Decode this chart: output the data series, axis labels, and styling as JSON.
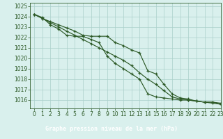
{
  "title": "Graphe pression niveau de la mer (hPa)",
  "xlim": [
    -0.5,
    23
  ],
  "ylim": [
    1015.2,
    1025.3
  ],
  "yticks": [
    1016,
    1017,
    1018,
    1019,
    1020,
    1021,
    1022,
    1023,
    1024,
    1025
  ],
  "xticks": [
    0,
    1,
    2,
    3,
    4,
    5,
    6,
    7,
    8,
    9,
    10,
    11,
    12,
    13,
    14,
    15,
    16,
    17,
    18,
    19,
    20,
    21,
    22,
    23
  ],
  "background_color": "#d9f0ed",
  "grid_color": "#aacfca",
  "line_color": "#2d5a27",
  "marker": "+",
  "line1": [
    1024.2,
    1023.8,
    1023.5,
    1023.2,
    1022.9,
    1022.6,
    1022.2,
    1022.1,
    1022.1,
    1022.1,
    1021.5,
    1021.2,
    1020.8,
    1020.5,
    1018.8,
    1018.5,
    1017.5,
    1016.6,
    1016.2,
    1016.1,
    1015.9,
    1015.8,
    1015.8,
    1015.7
  ],
  "line2": [
    1024.2,
    1023.8,
    1023.4,
    1023.0,
    1022.6,
    1022.2,
    1021.8,
    1021.4,
    1021.0,
    1020.6,
    1020.2,
    1019.8,
    1019.3,
    1018.6,
    1018.0,
    1017.5,
    1016.9,
    1016.3,
    1016.1,
    1016.0,
    1015.9,
    1015.8,
    1015.7,
    1015.6
  ],
  "line3": [
    1024.2,
    1023.9,
    1023.2,
    1022.8,
    1022.2,
    1022.1,
    1022.1,
    1021.8,
    1021.5,
    1020.2,
    1019.5,
    1019.0,
    1018.5,
    1018.0,
    1016.6,
    1016.3,
    1016.2,
    1016.1,
    1016.0,
    1016.0,
    1015.9,
    1015.8,
    1015.8,
    1015.6
  ],
  "title_bg_color": "#2d5a27",
  "title_text_color": "#ffffff",
  "tick_fontsize": 5.5,
  "title_fontsize": 6.0
}
